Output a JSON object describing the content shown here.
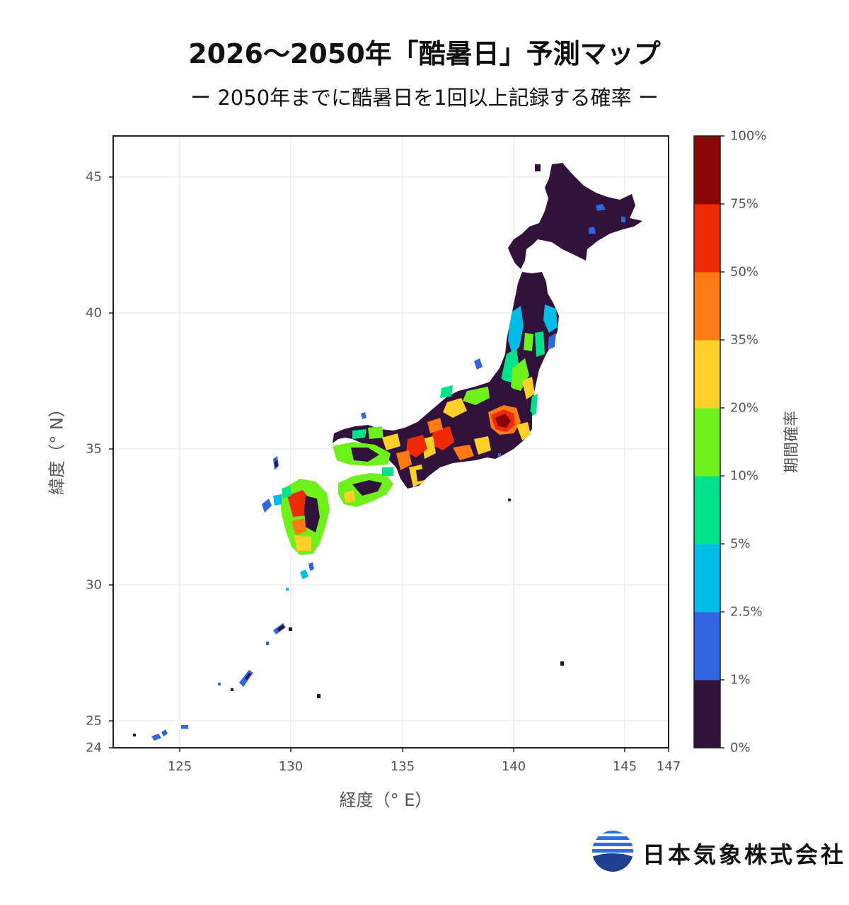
{
  "title": "2026〜2050年「酷暑日」予測マップ",
  "subtitle": "ー 2050年までに酷暑日を1回以上記録する確率 ー",
  "axes": {
    "xlabel": "経度（°  E）",
    "ylabel": "緯度（°  N）",
    "xlim": [
      122,
      147
    ],
    "ylim": [
      24,
      46.5
    ],
    "xticks": [
      "125",
      "130",
      "135",
      "140",
      "145",
      "147"
    ],
    "yticks": [
      "24",
      "25",
      "30",
      "35",
      "40",
      "45"
    ]
  },
  "colorbar": {
    "label": "期間確率",
    "ticks": [
      "0%",
      "1%",
      "2.5%",
      "5%",
      "10%",
      "20%",
      "35%",
      "50%",
      "75%",
      "100%"
    ],
    "bins": [
      {
        "range": "0-1%",
        "color": "#30123b"
      },
      {
        "range": "1-2.5%",
        "color": "#3066e0"
      },
      {
        "range": "2.5-5%",
        "color": "#00bde8"
      },
      {
        "range": "5-10%",
        "color": "#00e38a"
      },
      {
        "range": "10-20%",
        "color": "#6ef01a"
      },
      {
        "range": "20-35%",
        "color": "#ffd028"
      },
      {
        "range": "35-50%",
        "color": "#ff7a12"
      },
      {
        "range": "50-75%",
        "color": "#ee2a06"
      },
      {
        "range": "75-100%",
        "color": "#8a0706"
      }
    ]
  },
  "logo": {
    "company": "日本気象株式会社",
    "icon": "globe-logo-icon"
  }
}
